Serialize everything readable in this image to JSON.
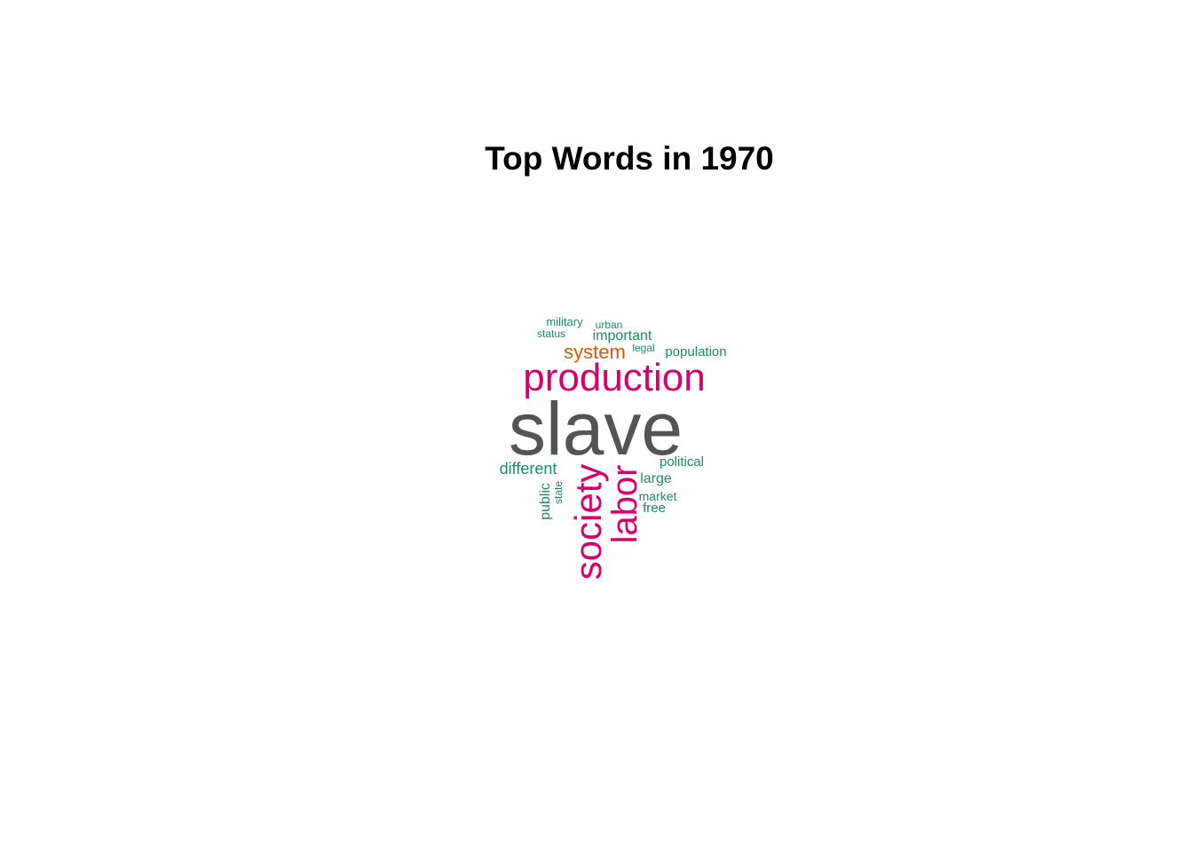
{
  "title": "Top Words in 1970",
  "colors": {
    "top": "#545454",
    "high": "#d6006e",
    "mid": "#d15a10",
    "low": "#1b8a66"
  },
  "words": [
    {
      "text": "slave",
      "level": "top"
    },
    {
      "text": "production",
      "level": "high"
    },
    {
      "text": "society",
      "level": "high"
    },
    {
      "text": "labor",
      "level": "high"
    },
    {
      "text": "system",
      "level": "mid"
    },
    {
      "text": "different",
      "level": "low"
    },
    {
      "text": "important",
      "level": "low"
    },
    {
      "text": "population",
      "level": "low"
    },
    {
      "text": "political",
      "level": "low"
    },
    {
      "text": "large",
      "level": "low"
    },
    {
      "text": "public",
      "level": "low"
    },
    {
      "text": "market",
      "level": "low"
    },
    {
      "text": "free",
      "level": "low"
    },
    {
      "text": "military",
      "level": "low"
    },
    {
      "text": "urban",
      "level": "low"
    },
    {
      "text": "status",
      "level": "low"
    },
    {
      "text": "legal",
      "level": "low"
    },
    {
      "text": "state",
      "level": "low"
    }
  ]
}
